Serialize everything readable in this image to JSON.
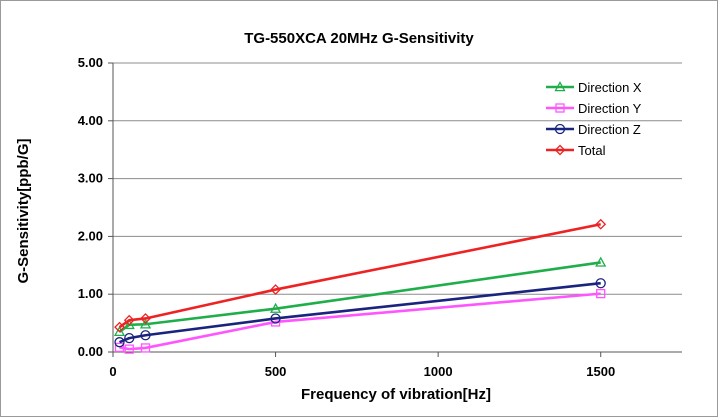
{
  "chart_data": {
    "type": "line",
    "title": "TG-550XCA 20MHz  G-Sensitivity",
    "xlabel": "Frequency  of vibration[Hz]",
    "ylabel": "G-Sensitivity[ppb/G]",
    "xlim": [
      0,
      1750
    ],
    "ylim": [
      0,
      5
    ],
    "xticks": [
      0,
      500,
      1000,
      1500
    ],
    "yticks": [
      0,
      1,
      2,
      3,
      4,
      5
    ],
    "xtick_labels": [
      "0",
      "500",
      "1000",
      "1500"
    ],
    "ytick_labels": [
      "0.00",
      "1.00",
      "2.00",
      "3.00",
      "4.00",
      "5.00"
    ],
    "grid": "horizontal",
    "legend_position": "top-right",
    "series": [
      {
        "name": "Direction X",
        "color": "#1fae4a",
        "marker": "triangle",
        "x": [
          20,
          50,
          100,
          500,
          1500
        ],
        "y": [
          0.35,
          0.47,
          0.48,
          0.75,
          1.55
        ]
      },
      {
        "name": "Direction Y",
        "color": "#ff55ff",
        "marker": "square",
        "x": [
          20,
          50,
          100,
          500,
          1500
        ],
        "y": [
          0.08,
          0.05,
          0.07,
          0.52,
          1.01
        ]
      },
      {
        "name": "Direction Z",
        "color": "#1a237e",
        "marker": "circle",
        "x": [
          20,
          50,
          100,
          500,
          1500
        ],
        "y": [
          0.17,
          0.24,
          0.29,
          0.58,
          1.19
        ]
      },
      {
        "name": "Total",
        "color": "#ee2222",
        "marker": "diamond",
        "x": [
          20,
          50,
          100,
          500,
          1500
        ],
        "y": [
          0.43,
          0.55,
          0.58,
          1.08,
          2.21
        ]
      }
    ]
  }
}
